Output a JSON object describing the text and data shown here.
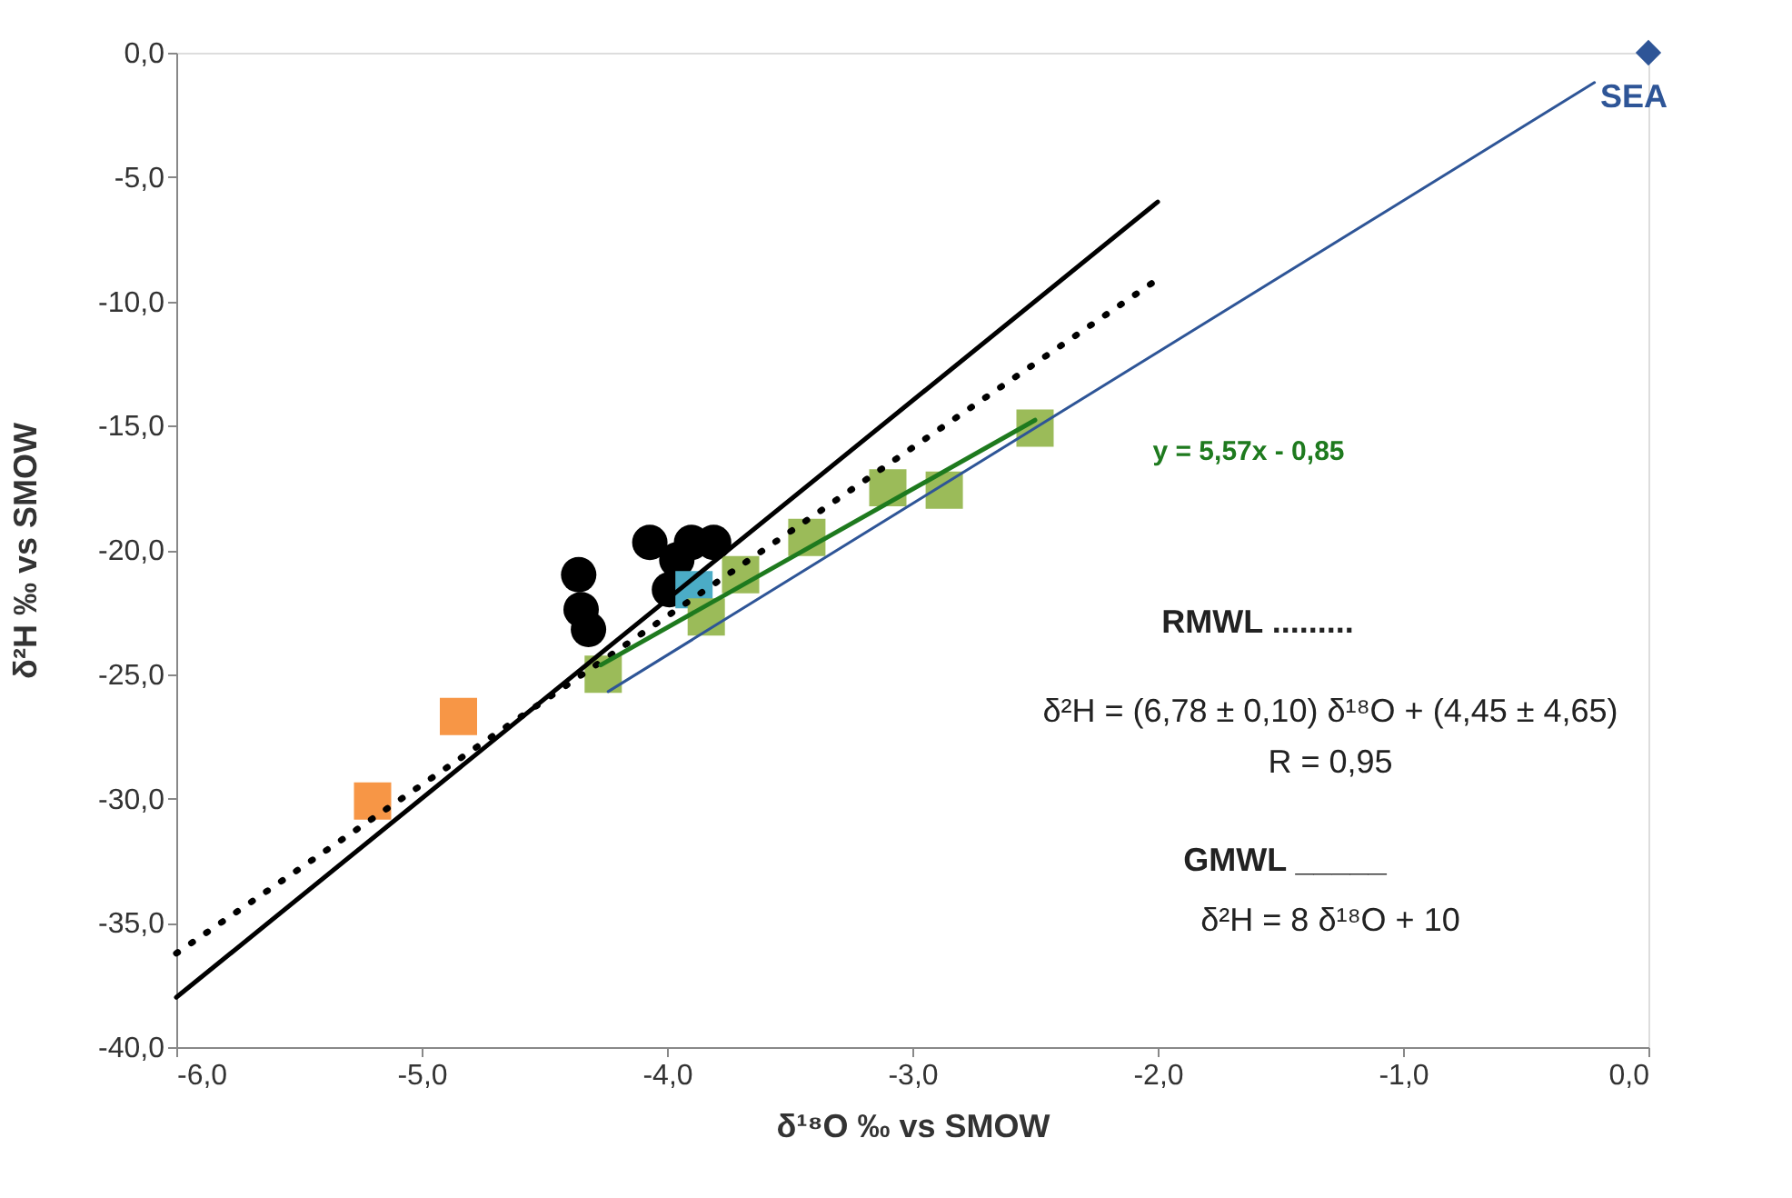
{
  "chart_data": {
    "type": "scatter",
    "xlabel": "δ¹⁸O ‰ vs SMOW",
    "ylabel": "δ²H ‰ vs SMOW",
    "xlim": [
      -6,
      0
    ],
    "ylim": [
      -40,
      0
    ],
    "xticks": [
      {
        "value": -6,
        "label": "-6,0"
      },
      {
        "value": -5,
        "label": "-5,0"
      },
      {
        "value": -4,
        "label": "-4,0"
      },
      {
        "value": -3,
        "label": "-3,0"
      },
      {
        "value": -2,
        "label": "-2,0"
      },
      {
        "value": -1,
        "label": "-1,0"
      },
      {
        "value": 0,
        "label": "0,0"
      }
    ],
    "yticks": [
      {
        "value": -40,
        "label": "-40,0"
      },
      {
        "value": -35,
        "label": "-35,0"
      },
      {
        "value": -30,
        "label": "-30,0"
      },
      {
        "value": -25,
        "label": "-25,0"
      },
      {
        "value": -20,
        "label": "-20,0"
      },
      {
        "value": -15,
        "label": "-15,0"
      },
      {
        "value": -10,
        "label": "-10,0"
      },
      {
        "value": -5,
        "label": "-5,0"
      },
      {
        "value": 0,
        "label": "0,0"
      }
    ],
    "grid": false,
    "series": [
      {
        "color": "#000000",
        "marker": "circle",
        "x": [
          -4.36,
          -4.35,
          -4.32,
          -4.07,
          -4.06,
          -4.04,
          -3.96,
          -3.9,
          -3.81,
          -3.99
        ],
        "values": [
          -21.0,
          -22.4,
          -23.2,
          -19.7,
          null,
          null,
          -20.4,
          -19.7,
          -19.7,
          -21.6
        ]
      },
      {
        "color": "#4bacc6",
        "marker": "square",
        "x": [
          -3.89
        ],
        "values": [
          -21.6
        ]
      },
      {
        "color": "#9bbb59",
        "marker": "square",
        "x": [
          -4.26,
          -3.84,
          -3.7,
          -3.43,
          -3.1,
          -2.87,
          -2.5
        ],
        "values": [
          -25.0,
          -22.7,
          -21.0,
          -19.5,
          -17.5,
          -17.6,
          -15.1
        ]
      },
      {
        "color": "#f79646",
        "marker": "square",
        "x": [
          -5.2,
          -4.85
        ],
        "values": [
          -30.1,
          -26.7
        ]
      },
      {
        "color": "#2e5597",
        "marker": "diamond",
        "x": [
          0
        ],
        "values": [
          0
        ]
      },
      {
        "type": "line",
        "color": "#000000",
        "line_style": "solid",
        "marker": "none",
        "x": [
          -6,
          -2
        ],
        "values": [
          -38,
          -6
        ]
      },
      {
        "type": "line",
        "color": "#000000",
        "line_style": "dotted",
        "marker": "none",
        "x": [
          -6,
          -2
        ],
        "values": [
          -36.23,
          -9.11
        ]
      },
      {
        "type": "line",
        "color": "#2e5597",
        "line_style": "solid",
        "marker": "none",
        "x": [
          -4.24,
          -0.22
        ],
        "values": [
          -25.7,
          -1.2
        ]
      },
      {
        "type": "line",
        "color": "#1e7a1e",
        "line_style": "solid",
        "marker": "none",
        "x": [
          -4.27,
          -2.5
        ],
        "values": [
          -24.63,
          -14.78
        ]
      }
    ],
    "annotations": [
      {
        "text": "SEA",
        "x": 0,
        "y": 0
      },
      "y = 5,57x - 0,85",
      "RMWL .........",
      "δ²H = (6,78 ± 0,10) δ¹⁸O + (4,45 ± 4,65)",
      "R = 0,95",
      "GMWL _____",
      "δ²H = 8 δ¹⁸O + 10"
    ]
  }
}
